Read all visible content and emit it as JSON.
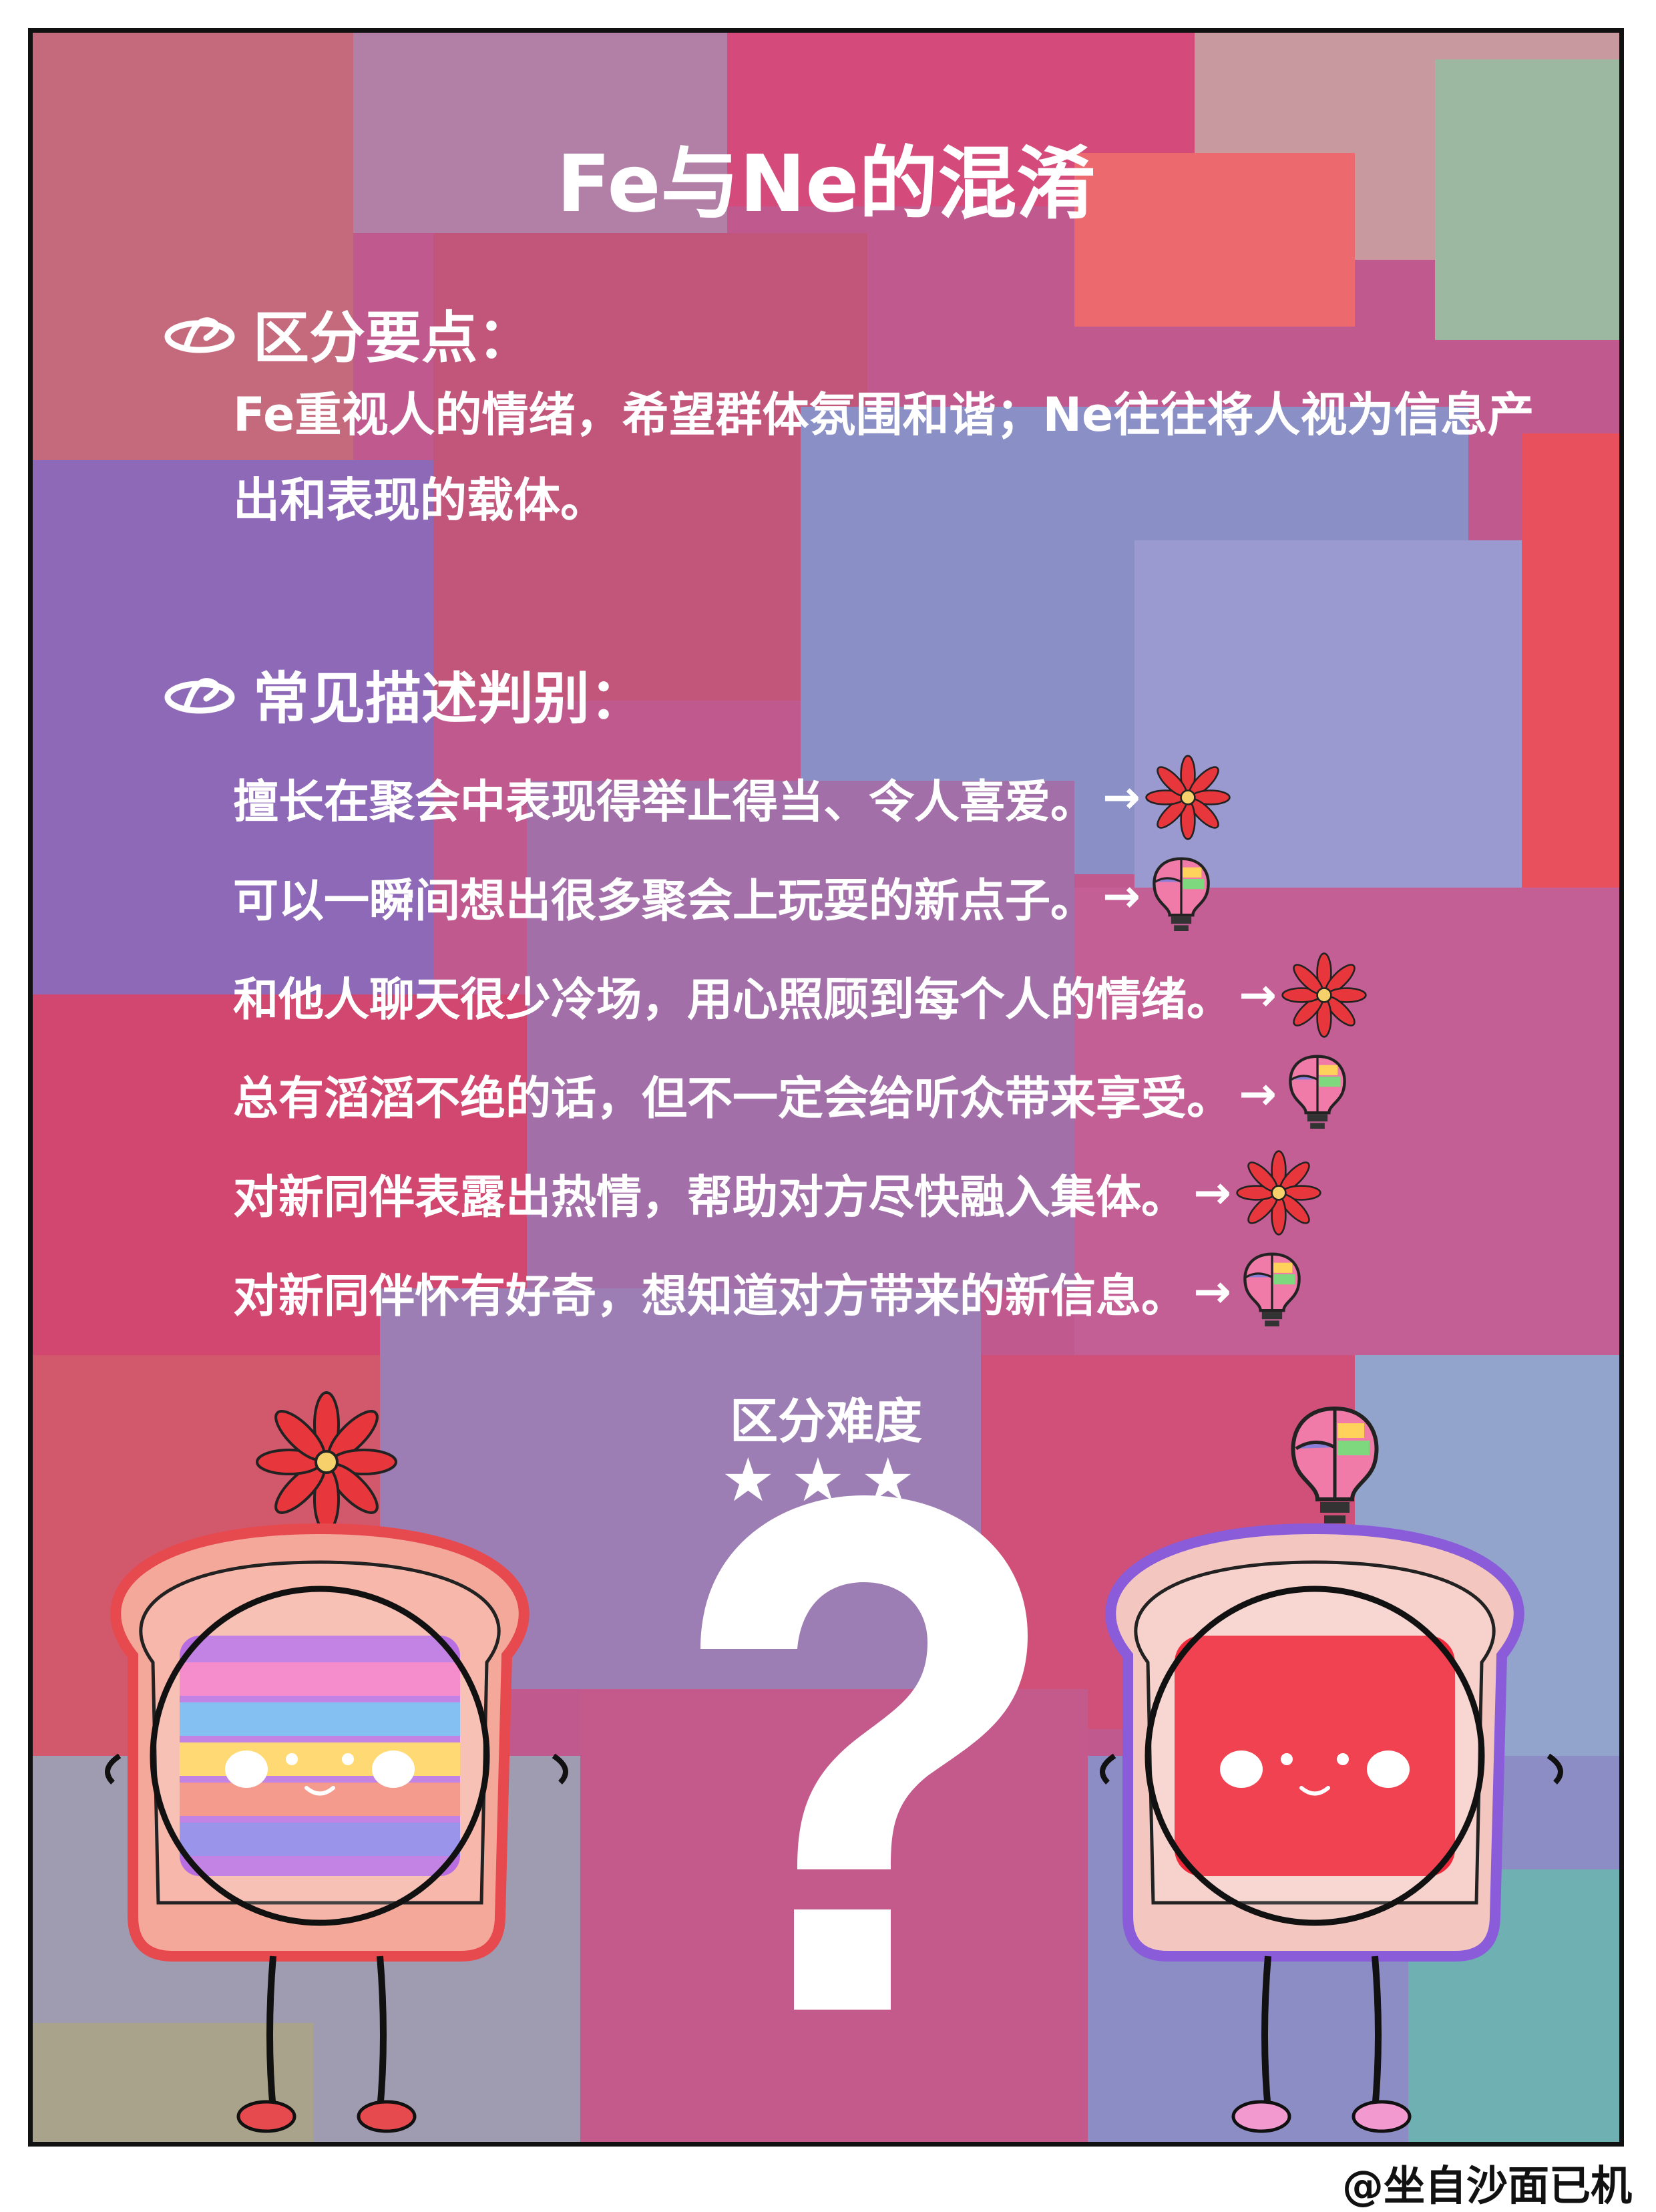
{
  "title": "Fe与Ne的混淆",
  "section1": {
    "heading": "区分要点：",
    "text": "Fe重视人的情绪，希望群体氛围和谐；Ne往往将人视为信息产出和表现的载体。"
  },
  "section2": {
    "heading": "常见描述判别：",
    "items": [
      {
        "text": "擅长在聚会中表现得举止得当、令人喜爱。",
        "arrow": "→",
        "icon": "flower-icon"
      },
      {
        "text": "可以一瞬间想出很多聚会上玩耍的新点子。",
        "arrow": "→",
        "icon": "brain-bulb-icon"
      },
      {
        "text": "和他人聊天很少冷场，用心照顾到每个人的情绪。",
        "arrow": "→",
        "icon": "flower-icon"
      },
      {
        "text": "总有滔滔不绝的话，但不一定会给听众带来享受。",
        "arrow": "→",
        "icon": "brain-bulb-icon"
      },
      {
        "text": "对新同伴表露出热情，帮助对方尽快融入集体。",
        "arrow": "→",
        "icon": "flower-icon"
      },
      {
        "text": "对新同伴怀有好奇，想知道对方带来的新信息。",
        "arrow": "→",
        "icon": "brain-bulb-icon"
      }
    ]
  },
  "difficulty": {
    "label": "区分难度",
    "stars": "★★★",
    "rating": 3
  },
  "credit": "@坐自沙面已机",
  "colors": {
    "text": "#ffffff",
    "flower": "#e8373c",
    "toast_left_outline": "#e64a4f",
    "toast_right_outline": "#8a5cd9",
    "jam_red": "#f0283a"
  }
}
